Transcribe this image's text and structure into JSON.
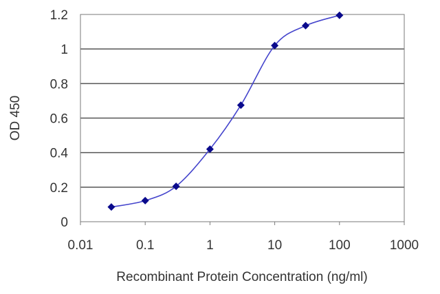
{
  "chart_data": {
    "type": "line",
    "title": "",
    "xlabel": "Recombinant Protein Concentration (ng/ml)",
    "ylabel": "OD 450",
    "x_scale": "log",
    "xlim": [
      0.01,
      1000
    ],
    "ylim": [
      0,
      1.2
    ],
    "x_ticks": [
      "0.01",
      "0.1",
      "1",
      "10",
      "100",
      "1000"
    ],
    "y_ticks": [
      "0",
      "0.2",
      "0.4",
      "0.6",
      "0.8",
      "1",
      "1.2"
    ],
    "grid": "horizontal",
    "legend": "none",
    "series": [
      {
        "x": [
          0.03,
          0.1,
          0.3,
          1,
          3,
          10,
          30,
          100
        ],
        "y": [
          0.085,
          0.122,
          0.205,
          0.42,
          0.675,
          1.02,
          1.135,
          1.195
        ]
      }
    ],
    "colors": {
      "line": "#4444cc",
      "marker": "#0a0a8c",
      "grid": "#555555"
    }
  }
}
